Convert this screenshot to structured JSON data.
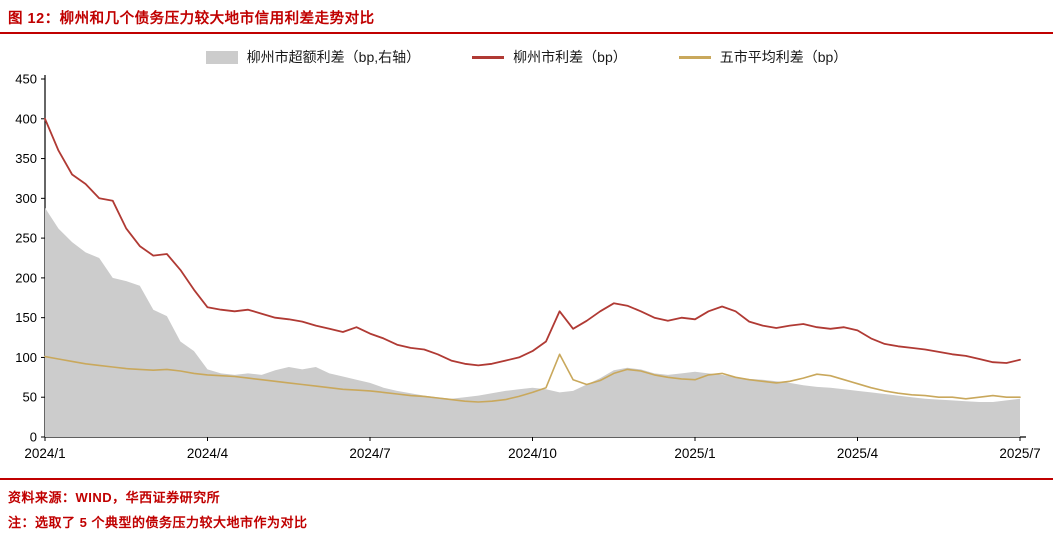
{
  "title": "图 12：柳州和几个债务压力较大地市信用利差走势对比",
  "footer": {
    "source": "资料来源：WIND，华西证券研究所",
    "note": "注：选取了 5 个典型的债务压力较大地市作为对比"
  },
  "colors": {
    "title_red": "#C00000",
    "line_red": "#B03A34",
    "line_gold": "#C9A85C",
    "area_gray": "#CCCCCC",
    "axis_black": "#000000"
  },
  "chart_data": {
    "type": "line",
    "title": "柳州和几个债务压力较大地市信用利差走势对比",
    "xlabel": "",
    "ylabel": "",
    "ylim": [
      0,
      450
    ],
    "y_ticks": [
      0,
      50,
      100,
      150,
      200,
      250,
      300,
      350,
      400,
      450
    ],
    "grid": false,
    "legend_position": "top",
    "x_unit": "months since 2024/1",
    "x_range": [
      0,
      18
    ],
    "x_step": 0.25,
    "x_ticks": {
      "positions_months": [
        0,
        3,
        6,
        9,
        12,
        15,
        18
      ],
      "labels": [
        "2024/1",
        "2024/4",
        "2024/7",
        "2024/10",
        "2025/1",
        "2025/4",
        "2025/7"
      ]
    },
    "series": [
      {
        "name": "柳州市超额利差（bp,右轴）",
        "type": "area",
        "color_key": "area_gray",
        "axis": "right",
        "values": [
          288,
          262,
          245,
          232,
          225,
          200,
          196,
          190,
          160,
          152,
          120,
          108,
          85,
          80,
          78,
          80,
          78,
          84,
          88,
          85,
          88,
          80,
          76,
          72,
          68,
          62,
          58,
          55,
          52,
          50,
          48,
          50,
          52,
          55,
          58,
          60,
          62,
          60,
          56,
          58,
          66,
          74,
          84,
          87,
          85,
          80,
          78,
          80,
          82,
          80,
          78,
          75,
          73,
          72,
          70,
          68,
          65,
          63,
          62,
          60,
          58,
          56,
          54,
          52,
          50,
          48,
          47,
          46,
          45,
          44,
          44,
          46,
          48
        ]
      },
      {
        "name": "柳州市利差（bp）",
        "type": "line",
        "color_key": "line_red",
        "axis": "left",
        "values": [
          400,
          360,
          330,
          318,
          300,
          297,
          262,
          240,
          228,
          230,
          210,
          185,
          163,
          160,
          158,
          160,
          155,
          150,
          148,
          145,
          140,
          136,
          132,
          138,
          130,
          124,
          116,
          112,
          110,
          104,
          96,
          92,
          90,
          92,
          96,
          100,
          108,
          120,
          158,
          136,
          146,
          158,
          168,
          165,
          158,
          150,
          146,
          150,
          148,
          158,
          164,
          158,
          145,
          140,
          137,
          140,
          142,
          138,
          136,
          138,
          134,
          124,
          117,
          114,
          112,
          110,
          107,
          104,
          102,
          98,
          94,
          93,
          97
        ]
      },
      {
        "name": "五市平均利差（bp）",
        "type": "line",
        "color_key": "line_gold",
        "axis": "left",
        "values": [
          101,
          98,
          95,
          92,
          90,
          88,
          86,
          85,
          84,
          85,
          83,
          80,
          78,
          77,
          76,
          74,
          72,
          70,
          68,
          66,
          64,
          62,
          60,
          59,
          58,
          56,
          54,
          52,
          51,
          49,
          47,
          45,
          44,
          45,
          47,
          51,
          56,
          62,
          104,
          72,
          66,
          71,
          80,
          85,
          83,
          78,
          75,
          73,
          72,
          78,
          80,
          75,
          72,
          70,
          68,
          70,
          74,
          79,
          77,
          72,
          67,
          62,
          58,
          55,
          53,
          52,
          50,
          50,
          48,
          50,
          52,
          50,
          50
        ]
      }
    ]
  }
}
